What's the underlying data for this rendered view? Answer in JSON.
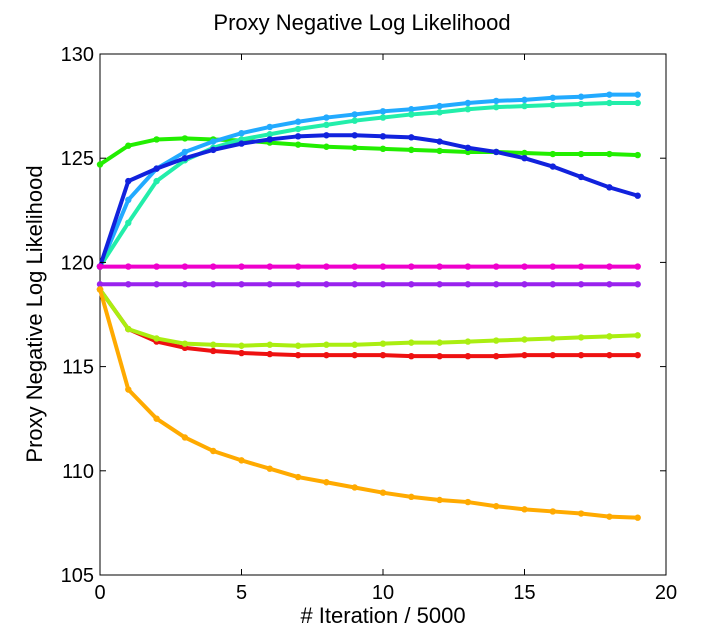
{
  "chart_data": {
    "type": "line",
    "title": "Proxy Negative Log Likelihood",
    "xlabel": "# Iteration / 5000",
    "ylabel": "Proxy Negative Log Likelihood",
    "xlim": [
      0,
      20
    ],
    "ylim": [
      105,
      130
    ],
    "xticks": [
      0,
      5,
      10,
      15,
      20
    ],
    "yticks": [
      105,
      110,
      115,
      120,
      125,
      130
    ],
    "grid": false,
    "x": [
      0,
      1,
      2,
      3,
      4,
      5,
      6,
      7,
      8,
      9,
      10,
      11,
      12,
      13,
      14,
      15,
      16,
      17,
      18,
      19
    ],
    "series": [
      {
        "name": "green",
        "color": "#22ee00",
        "values": [
          124.7,
          125.6,
          125.9,
          125.95,
          125.9,
          125.85,
          125.75,
          125.65,
          125.55,
          125.5,
          125.45,
          125.4,
          125.35,
          125.3,
          125.3,
          125.25,
          125.2,
          125.2,
          125.2,
          125.15
        ]
      },
      {
        "name": "sky-blue",
        "color": "#22aaff",
        "values": [
          119.8,
          123.0,
          124.5,
          125.3,
          125.8,
          126.2,
          126.5,
          126.75,
          126.95,
          127.1,
          127.25,
          127.35,
          127.5,
          127.65,
          127.75,
          127.8,
          127.9,
          127.95,
          128.05,
          128.05
        ]
      },
      {
        "name": "aquamarine",
        "color": "#22eeaa",
        "values": [
          119.8,
          121.9,
          123.9,
          124.9,
          125.5,
          125.9,
          126.15,
          126.4,
          126.6,
          126.8,
          126.95,
          127.1,
          127.2,
          127.35,
          127.45,
          127.5,
          127.55,
          127.6,
          127.65,
          127.65
        ]
      },
      {
        "name": "blue",
        "color": "#1122dd",
        "values": [
          119.8,
          123.9,
          124.5,
          125.0,
          125.4,
          125.7,
          125.9,
          126.05,
          126.1,
          126.1,
          126.05,
          126.0,
          125.8,
          125.5,
          125.3,
          125.0,
          124.6,
          124.1,
          123.6,
          123.2
        ]
      },
      {
        "name": "magenta",
        "color": "#ee00cc",
        "values": [
          119.8,
          119.8,
          119.8,
          119.8,
          119.8,
          119.8,
          119.8,
          119.8,
          119.8,
          119.8,
          119.8,
          119.8,
          119.8,
          119.8,
          119.8,
          119.8,
          119.8,
          119.8,
          119.8,
          119.8
        ]
      },
      {
        "name": "purple",
        "color": "#9922ee",
        "values": [
          118.95,
          118.95,
          118.95,
          118.95,
          118.95,
          118.95,
          118.95,
          118.95,
          118.95,
          118.95,
          118.95,
          118.95,
          118.95,
          118.95,
          118.95,
          118.95,
          118.95,
          118.95,
          118.95,
          118.95
        ]
      },
      {
        "name": "red",
        "color": "#ee1111",
        "values": [
          118.7,
          116.8,
          116.2,
          115.9,
          115.75,
          115.65,
          115.6,
          115.55,
          115.55,
          115.55,
          115.55,
          115.5,
          115.5,
          115.5,
          115.5,
          115.55,
          115.55,
          115.55,
          115.55,
          115.55
        ]
      },
      {
        "name": "yellow-green",
        "color": "#aaee11",
        "values": [
          118.7,
          116.8,
          116.35,
          116.1,
          116.05,
          116.0,
          116.05,
          116.0,
          116.05,
          116.05,
          116.1,
          116.15,
          116.15,
          116.2,
          116.25,
          116.3,
          116.35,
          116.4,
          116.45,
          116.5
        ]
      },
      {
        "name": "orange",
        "color": "#ffaa00",
        "values": [
          118.7,
          113.9,
          112.5,
          111.6,
          110.95,
          110.5,
          110.1,
          109.7,
          109.45,
          109.2,
          108.95,
          108.75,
          108.6,
          108.5,
          108.3,
          108.15,
          108.05,
          107.95,
          107.8,
          107.75
        ]
      }
    ]
  }
}
